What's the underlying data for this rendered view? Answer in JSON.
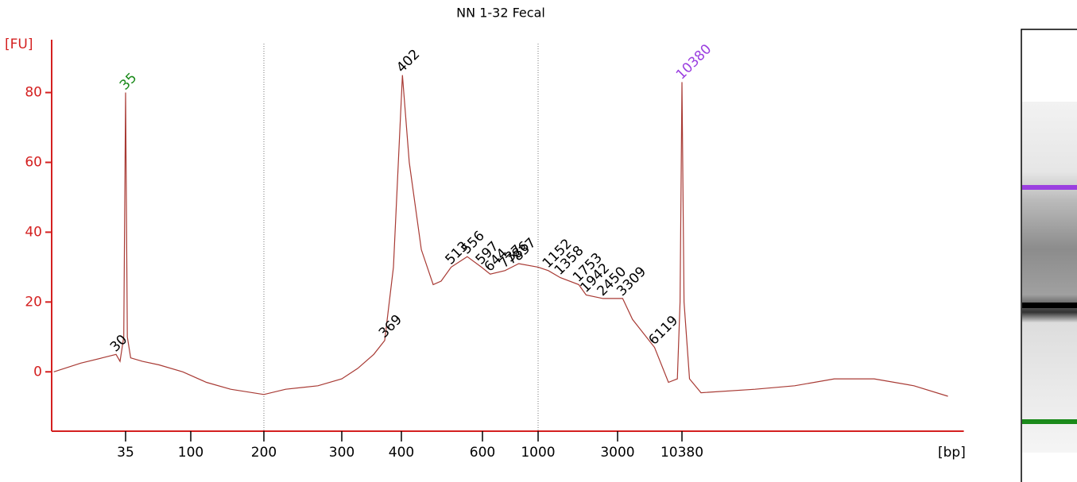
{
  "chart_data": {
    "type": "line",
    "title": "NN 1-32 Fecal",
    "y_label": "[FU]",
    "x_label": "[bp]",
    "series": [
      {
        "color": "#a83a34",
        "x": [
          11,
          17,
          24,
          30,
          32,
          34,
          35,
          36,
          38,
          46,
          60,
          88,
          116,
          146,
          200,
          224,
          265,
          300,
          324,
          350,
          369,
          385,
          402,
          416,
          442,
          469,
          488,
          513,
          556,
          597,
          644,
          737,
          786,
          837,
          1000,
          1152,
          1358,
          1753,
          1942,
          2450,
          3309,
          4000,
          6119,
          8000,
          9500,
          10000,
          10380,
          10800,
          12000,
          15000,
          42500,
          91200,
          196000,
          422000,
          908000,
          1750000
        ],
        "values": [
          0,
          2.5,
          4,
          5,
          3,
          10,
          80,
          10,
          4,
          3,
          2,
          0,
          -3,
          -5,
          -6.5,
          -5,
          -4,
          -2,
          1,
          5,
          9,
          30,
          85,
          60,
          35,
          25,
          26,
          30,
          33,
          30,
          28,
          29,
          30,
          31,
          30,
          29,
          27,
          25,
          22,
          21,
          21,
          15,
          7,
          -3,
          -2,
          20,
          83,
          20,
          -2,
          -6,
          -5,
          -4,
          -2,
          -2,
          -4,
          -7
        ]
      }
    ],
    "peak_labels": [
      {
        "value": 30,
        "color": "#000000"
      },
      {
        "value": 35,
        "color": "#1a8a1a"
      },
      {
        "value": 369,
        "color": "#000000"
      },
      {
        "value": 402,
        "color": "#000000"
      },
      {
        "value": 513,
        "color": "#000000"
      },
      {
        "value": 556,
        "color": "#000000"
      },
      {
        "value": 597,
        "color": "#000000"
      },
      {
        "value": 644,
        "color": "#000000"
      },
      {
        "value": 737,
        "color": "#000000"
      },
      {
        "value": 786,
        "color": "#000000"
      },
      {
        "value": 837,
        "color": "#000000"
      },
      {
        "value": 1152,
        "color": "#000000"
      },
      {
        "value": 1358,
        "color": "#000000"
      },
      {
        "value": 1753,
        "color": "#000000"
      },
      {
        "value": 1942,
        "color": "#000000"
      },
      {
        "value": 2450,
        "color": "#000000"
      },
      {
        "value": 3309,
        "color": "#000000"
      },
      {
        "value": 6119,
        "color": "#000000"
      },
      {
        "value": 10380,
        "color": "#9b3fe0"
      }
    ],
    "xlim": [
      11,
      1750000
    ],
    "xticks": [
      35,
      100,
      200,
      300,
      400,
      600,
      1000,
      3000,
      10380
    ],
    "x_log": true,
    "ylim": [
      -17,
      94
    ],
    "yticks": [
      0,
      20,
      40,
      60,
      80
    ],
    "grid_at": [
      200,
      1000
    ],
    "axis_color": "#d42020"
  }
}
